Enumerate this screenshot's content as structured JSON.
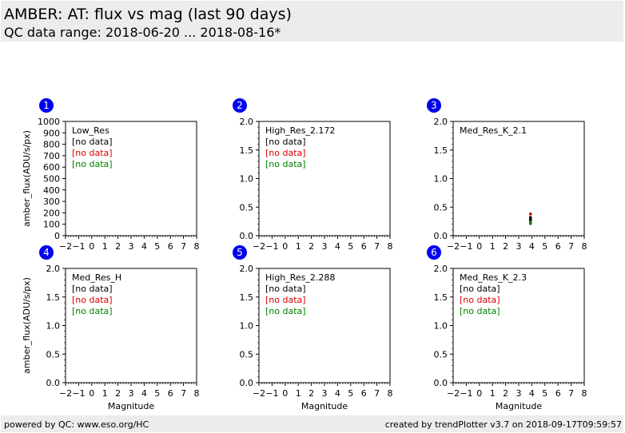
{
  "header": {
    "title": "AMBER: AT: flux vs mag (last 90 days)",
    "subtitle": "QC data range: 2018-06-20 ... 2018-08-16*"
  },
  "footer": {
    "left": "powered by QC: www.eso.org/HC",
    "right": "created by trendPlotter v3.7 on 2018-09-17T09:59:57"
  },
  "colors": {
    "black": "#000000",
    "red": "#dd0000",
    "green": "#008000",
    "badge": "#0000ee"
  },
  "chart_data": [
    {
      "type": "scatter",
      "panel": "1",
      "name": "Low_Res",
      "xlabel": "",
      "ylabel": "amber_flux(ADU/s/px)",
      "xlim": [
        -2,
        8
      ],
      "ylim": [
        0,
        1000
      ],
      "xticks": [
        "−2",
        "−1",
        "0",
        "1",
        "2",
        "3",
        "4",
        "5",
        "6",
        "7",
        "8"
      ],
      "yticks": [
        "0",
        "100",
        "200",
        "300",
        "400",
        "500",
        "600",
        "700",
        "800",
        "900",
        "1000"
      ],
      "status": [
        "[no data]",
        "[no data]",
        "[no data]"
      ],
      "series": []
    },
    {
      "type": "scatter",
      "panel": "2",
      "name": "High_Res_2.172",
      "xlabel": "",
      "ylabel": "",
      "xlim": [
        -2,
        8
      ],
      "ylim": [
        0,
        2
      ],
      "xticks": [
        "−2",
        "−1",
        "0",
        "1",
        "2",
        "3",
        "4",
        "5",
        "6",
        "7",
        "8"
      ],
      "yticks": [
        "0.0",
        "0.5",
        "1.0",
        "1.5",
        "2.0"
      ],
      "status": [
        "[no data]",
        "[no data]",
        "[no data]"
      ],
      "series": []
    },
    {
      "type": "scatter",
      "panel": "3",
      "name": "Med_Res_K_2.1",
      "xlabel": "",
      "ylabel": "",
      "xlim": [
        -2,
        8
      ],
      "ylim": [
        0,
        2
      ],
      "xticks": [
        "−2",
        "−1",
        "0",
        "1",
        "2",
        "3",
        "4",
        "5",
        "6",
        "7",
        "8"
      ],
      "yticks": [
        "0.0",
        "0.5",
        "1.0",
        "1.5",
        "2.0"
      ],
      "status": [],
      "series": [
        {
          "color": "red",
          "points": [
            [
              3.9,
              0.38
            ]
          ]
        },
        {
          "color": "black",
          "points": [
            [
              3.9,
              0.32
            ],
            [
              3.9,
              0.29
            ],
            [
              3.9,
              0.27
            ]
          ]
        },
        {
          "color": "green",
          "points": [
            [
              3.9,
              0.24
            ],
            [
              3.9,
              0.21
            ]
          ]
        }
      ]
    },
    {
      "type": "scatter",
      "panel": "4",
      "name": "Med_Res_H",
      "xlabel": "Magnitude",
      "ylabel": "amber_flux(ADU/s/px)",
      "xlim": [
        -2,
        8
      ],
      "ylim": [
        0,
        2
      ],
      "xticks": [
        "−2",
        "−1",
        "0",
        "1",
        "2",
        "3",
        "4",
        "5",
        "6",
        "7",
        "8"
      ],
      "yticks": [
        "0.0",
        "0.5",
        "1.0",
        "1.5",
        "2.0"
      ],
      "status": [
        "[no data]",
        "[no data]",
        "[no data]"
      ],
      "series": []
    },
    {
      "type": "scatter",
      "panel": "5",
      "name": "High_Res_2.288",
      "xlabel": "Magnitude",
      "ylabel": "",
      "xlim": [
        -2,
        8
      ],
      "ylim": [
        0,
        2
      ],
      "xticks": [
        "−2",
        "−1",
        "0",
        "1",
        "2",
        "3",
        "4",
        "5",
        "6",
        "7",
        "8"
      ],
      "yticks": [
        "0.0",
        "0.5",
        "1.0",
        "1.5",
        "2.0"
      ],
      "status": [
        "[no data]",
        "[no data]",
        "[no data]"
      ],
      "series": []
    },
    {
      "type": "scatter",
      "panel": "6",
      "name": "Med_Res_K_2.3",
      "xlabel": "Magnitude",
      "ylabel": "",
      "xlim": [
        -2,
        8
      ],
      "ylim": [
        0,
        2
      ],
      "xticks": [
        "−2",
        "−1",
        "0",
        "1",
        "2",
        "3",
        "4",
        "5",
        "6",
        "7",
        "8"
      ],
      "yticks": [
        "0.0",
        "0.5",
        "1.0",
        "1.5",
        "2.0"
      ],
      "status": [
        "[no data]",
        "[no data]",
        "[no data]"
      ],
      "series": []
    }
  ]
}
